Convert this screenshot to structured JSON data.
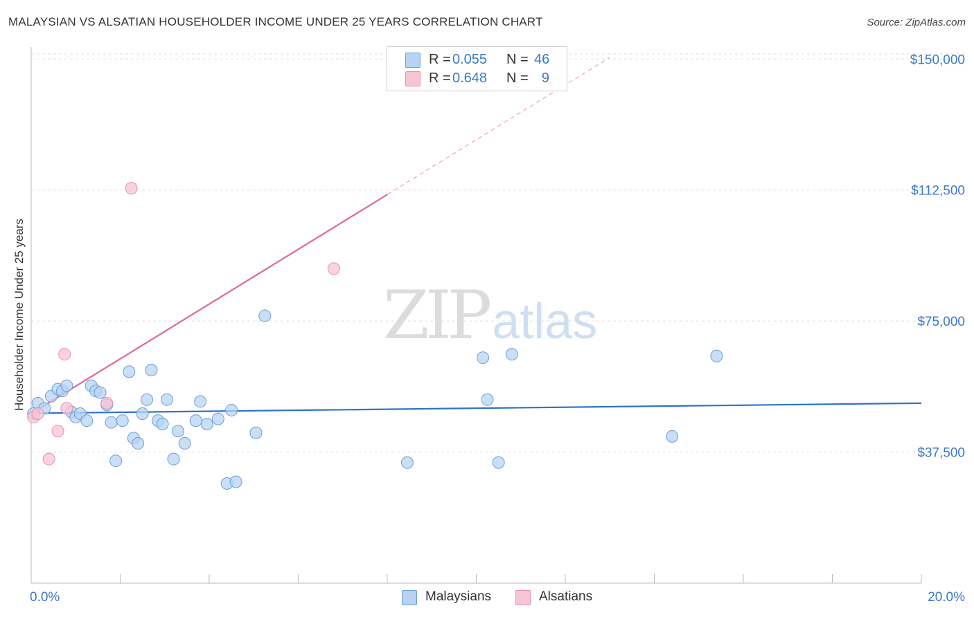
{
  "title": "MALAYSIAN VS ALSATIAN HOUSEHOLDER INCOME UNDER 25 YEARS CORRELATION CHART",
  "source": "Source: ZipAtlas.com",
  "watermark": {
    "part1": "ZIP",
    "part2": "atlas"
  },
  "legend": {
    "rows": [
      {
        "r_label": "R =",
        "r_value": "0.055",
        "n_label": "N =",
        "n_value": "46"
      },
      {
        "r_label": "R =",
        "r_value": "0.648",
        "n_label": "N =",
        "n_value": "9"
      }
    ]
  },
  "bottom_legend": {
    "malaysians": "Malaysians",
    "alsatians": "Alsatians"
  },
  "colors": {
    "malaysian_fill": "#b8d3f2",
    "malaysian_stroke": "#6a9fd8",
    "malaysian_line": "#2e72cc",
    "alsatian_fill": "#f8c4d4",
    "alsatian_stroke": "#e690ad",
    "alsatian_line": "#e06a92",
    "tick_label": "#3a78cc",
    "grid": "#dddddd"
  },
  "chart_data": {
    "type": "scatter",
    "title": "MALAYSIAN VS ALSATIAN HOUSEHOLDER INCOME UNDER 25 YEARS CORRELATION CHART",
    "xlabel": "",
    "ylabel": "Householder Income Under 25 years",
    "xlim": [
      0,
      20
    ],
    "ylim": [
      0,
      155000
    ],
    "x_tick_labels": [
      "0.0%",
      "20.0%"
    ],
    "y_ticks": [
      37500,
      75000,
      112500,
      150000
    ],
    "y_tick_labels": [
      "$37,500",
      "$75,000",
      "$112,500",
      "$150,000"
    ],
    "series": [
      {
        "name": "Malaysians",
        "points": [
          [
            0.15,
            51500
          ],
          [
            0.3,
            50000
          ],
          [
            0.45,
            53500
          ],
          [
            0.6,
            55500
          ],
          [
            0.7,
            55000
          ],
          [
            0.8,
            56500
          ],
          [
            0.9,
            49000
          ],
          [
            1.0,
            47500
          ],
          [
            1.1,
            48500
          ],
          [
            1.25,
            46500
          ],
          [
            1.35,
            56500
          ],
          [
            1.45,
            55000
          ],
          [
            1.55,
            54500
          ],
          [
            1.7,
            51000
          ],
          [
            1.8,
            46000
          ],
          [
            1.9,
            35000
          ],
          [
            2.05,
            46500
          ],
          [
            2.2,
            60500
          ],
          [
            2.3,
            41500
          ],
          [
            2.4,
            40000
          ],
          [
            2.5,
            48500
          ],
          [
            2.6,
            52500
          ],
          [
            2.7,
            61000
          ],
          [
            2.85,
            46500
          ],
          [
            2.95,
            45500
          ],
          [
            3.05,
            52500
          ],
          [
            3.2,
            35500
          ],
          [
            3.3,
            43500
          ],
          [
            3.45,
            40000
          ],
          [
            3.7,
            46500
          ],
          [
            3.8,
            52000
          ],
          [
            3.95,
            45500
          ],
          [
            4.2,
            47000
          ],
          [
            4.4,
            28500
          ],
          [
            4.5,
            49500
          ],
          [
            4.6,
            29000
          ],
          [
            5.05,
            43000
          ],
          [
            5.25,
            76500
          ],
          [
            8.45,
            34500
          ],
          [
            10.15,
            64500
          ],
          [
            10.25,
            52500
          ],
          [
            10.5,
            34500
          ],
          [
            10.8,
            65500
          ],
          [
            14.4,
            42000
          ],
          [
            15.4,
            65000
          ],
          [
            0.05,
            48500
          ]
        ],
        "trend": {
          "x": [
            0,
            20
          ],
          "y": [
            48600,
            51500
          ]
        }
      },
      {
        "name": "Alsatians",
        "points": [
          [
            0.05,
            47500
          ],
          [
            0.4,
            35500
          ],
          [
            0.6,
            43500
          ],
          [
            0.75,
            65500
          ],
          [
            0.8,
            50000
          ],
          [
            1.7,
            51500
          ],
          [
            2.25,
            113000
          ],
          [
            6.8,
            90000
          ],
          [
            0.15,
            48500
          ]
        ],
        "trend": {
          "x": [
            0,
            8
          ],
          "y": [
            48500,
            111200
          ]
        },
        "trend_extension": {
          "x": [
            8,
            13
          ],
          "y": [
            111200,
            150400
          ]
        }
      }
    ]
  }
}
